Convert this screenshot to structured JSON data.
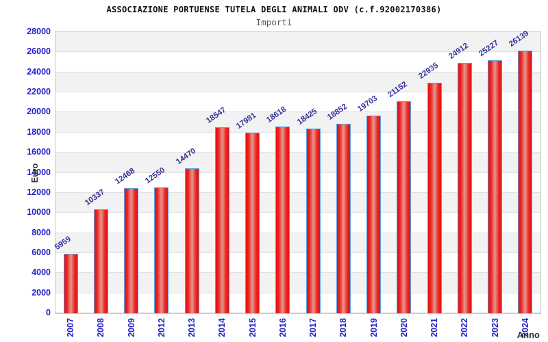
{
  "header": {
    "title": "ASSOCIAZIONE PORTUENSE TUTELA DEGLI ANIMALI ODV (c.f.92002170386)",
    "subtitle": "Importi"
  },
  "axes": {
    "y_title": "Euro",
    "x_title": "Anno",
    "y_ticks": [
      0,
      2000,
      4000,
      6000,
      8000,
      10000,
      12000,
      14000,
      16000,
      18000,
      20000,
      22000,
      24000,
      26000,
      28000
    ]
  },
  "colors": {
    "bar_fill": "#ee2222",
    "bar_highlight": "#e2998c",
    "bar_border": "#5e9fdf",
    "tick_text": "#2222cc",
    "value_text": "#333399",
    "band_gray": "#f2f2f2",
    "grid_line": "#e0e0e0",
    "axis_title_text": "#333333"
  },
  "chart_data": {
    "type": "bar",
    "title": "ASSOCIAZIONE PORTUENSE TUTELA DEGLI ANIMALI ODV (c.f.92002170386)",
    "subtitle": "Importi",
    "categories": [
      "2007",
      "2008",
      "2009",
      "2012",
      "2013",
      "2014",
      "2015",
      "2016",
      "2017",
      "2018",
      "2019",
      "2020",
      "2021",
      "2022",
      "2023",
      "2024"
    ],
    "values": [
      5959,
      10337,
      12468,
      12550,
      14470,
      18547,
      17981,
      18618,
      18425,
      18852,
      19703,
      21152,
      22935,
      24912,
      25227,
      26139
    ],
    "xlabel": "Anno",
    "ylabel": "Euro",
    "ylim": [
      0,
      28000
    ],
    "ytick_step": 2000,
    "grid": "horizontal alternating bands",
    "legend": "none",
    "value_labels": "above bars, rotated",
    "x_tick_rotation": -90
  }
}
